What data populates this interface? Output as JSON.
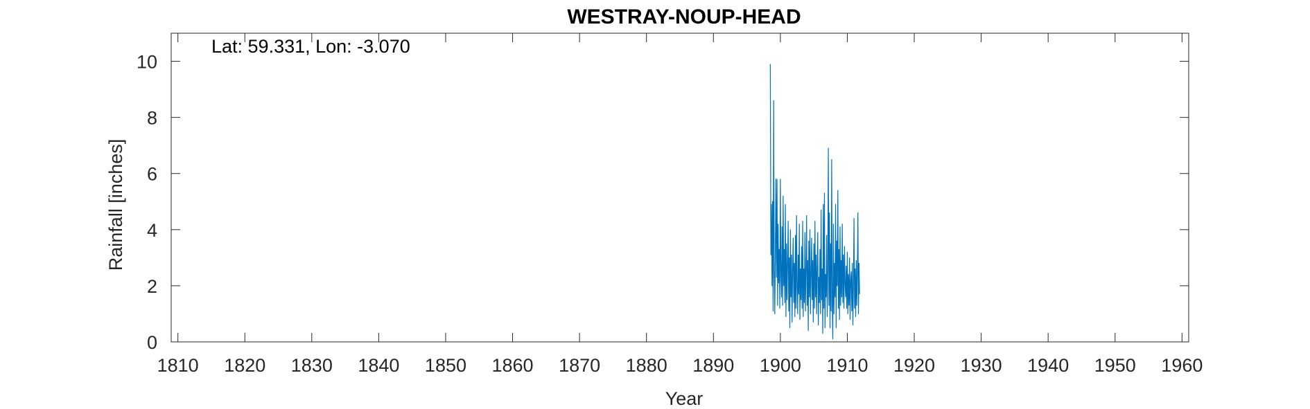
{
  "chart_data": {
    "type": "line",
    "title": "WESTRAY-NOUP-HEAD",
    "annotation": "Lat: 59.331, Lon: -3.070",
    "xlabel": "Year",
    "ylabel": "Rainfall [inches]",
    "xlim": [
      1809,
      1961
    ],
    "ylim": [
      0,
      11
    ],
    "xticks": [
      1810,
      1820,
      1830,
      1840,
      1850,
      1860,
      1870,
      1880,
      1890,
      1900,
      1910,
      1920,
      1930,
      1940,
      1950,
      1960
    ],
    "yticks": [
      0,
      2,
      4,
      6,
      8,
      10
    ],
    "grid": false,
    "series_color": "#0072BD",
    "series": [
      {
        "x_start": 1898.5,
        "step_months": 1,
        "values": [
          9.9,
          3.1,
          4.9,
          2.0,
          5.0,
          1.1,
          8.6,
          2.6,
          1.0,
          3.2,
          5.8,
          2.3,
          5.8,
          1.3,
          4.2,
          2.1,
          3.3,
          1.2,
          5.8,
          2.4,
          1.6,
          4.1,
          1.3,
          5.2,
          2.0,
          3.3,
          1.4,
          4.9,
          0.9,
          3.5,
          1.5,
          2.8,
          4.3,
          1.1,
          3.0,
          0.5,
          4.0,
          1.6,
          3.1,
          0.7,
          2.6,
          3.7,
          1.4,
          2.8,
          0.9,
          3.8,
          1.2,
          4.5,
          2.0,
          1.0,
          3.1,
          1.7,
          4.2,
          0.8,
          2.6,
          1.5,
          3.4,
          1.2,
          4.3,
          0.9,
          2.6,
          1.4,
          3.9,
          1.1,
          2.5,
          4.5,
          1.3,
          2.9,
          0.4,
          3.6,
          1.6,
          4.0,
          1.0,
          2.4,
          3.7,
          1.5,
          2.9,
          0.7,
          3.5,
          1.2,
          4.3,
          1.6,
          3.1,
          1.0,
          2.7,
          3.9,
          0.6,
          2.3,
          1.4,
          3.3,
          1.0,
          4.7,
          1.5,
          2.6,
          0.3,
          4.9,
          1.2,
          5.3,
          0.5,
          2.4,
          1.6,
          3.8,
          0.9,
          2.6,
          6.9,
          1.3,
          4.6,
          0.5,
          3.5,
          1.1,
          6.5,
          1.3,
          0.1,
          4.2,
          1.0,
          2.8,
          1.6,
          4.9,
          0.5,
          3.6,
          2.0,
          5.4,
          1.2,
          3.3,
          0.8,
          4.1,
          1.3,
          2.9,
          1.6,
          4.2,
          1.4,
          3.1,
          1.2,
          3.4,
          2.1,
          1.6,
          2.7,
          1.2,
          3.2,
          1.0,
          2.4,
          1.3,
          3.0,
          0.8,
          2.2,
          2.5,
          1.1,
          2.8,
          0.6,
          2.0,
          4.4,
          1.2,
          2.6,
          0.9,
          2.9,
          1.3,
          2.4,
          4.6,
          1.0,
          2.8,
          1.7
        ]
      }
    ]
  }
}
